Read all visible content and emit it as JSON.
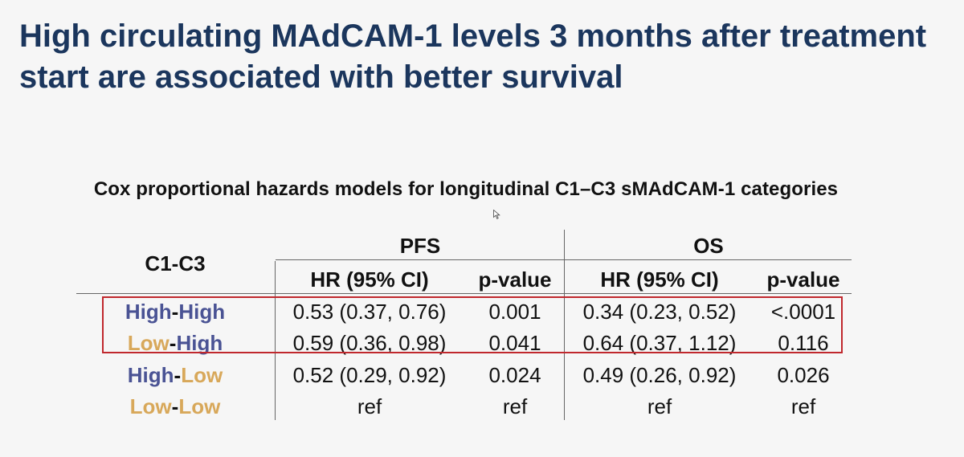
{
  "slide": {
    "title": "High circulating MAdCAM-1 levels 3 months after treatment start are associated with better survival",
    "subtitle": "Cox proportional hazards models for longitudinal C1–C3 sMAdCAM-1 categories"
  },
  "table": {
    "row_header": "C1-C3",
    "groups": [
      "PFS",
      "OS"
    ],
    "columns": [
      "HR (95% CI)",
      "p-value",
      "HR (95% CI)",
      "p-value"
    ],
    "rows": [
      {
        "label_a": "High",
        "sep": "-",
        "label_b": "High",
        "pfs_hr": "0.53 (0.37, 0.76)",
        "pfs_p": "0.001",
        "os_hr": "0.34 (0.23, 0.52)",
        "os_p": "<.0001"
      },
      {
        "label_a": "Low",
        "sep": "-",
        "label_b": "High",
        "pfs_hr": "0.59 (0.36, 0.98)",
        "pfs_p": "0.041",
        "os_hr": "0.64 (0.37, 1.12)",
        "os_p": "0.116"
      },
      {
        "label_a": "High",
        "sep": "-",
        "label_b": "Low",
        "pfs_hr": "0.52 (0.29, 0.92)",
        "pfs_p": "0.024",
        "os_hr": "0.49 (0.26, 0.92)",
        "os_p": "0.026"
      },
      {
        "label_a": "Low",
        "sep": "-",
        "label_b": "Low",
        "pfs_hr": "ref",
        "pfs_p": "ref",
        "os_hr": "ref",
        "os_p": "ref"
      }
    ]
  },
  "colors": {
    "title": "#1b365d",
    "high": "#4a5394",
    "low": "#d8a85a",
    "highlight_box": "#c0282d"
  },
  "icons": [
    "cursor-icon"
  ]
}
